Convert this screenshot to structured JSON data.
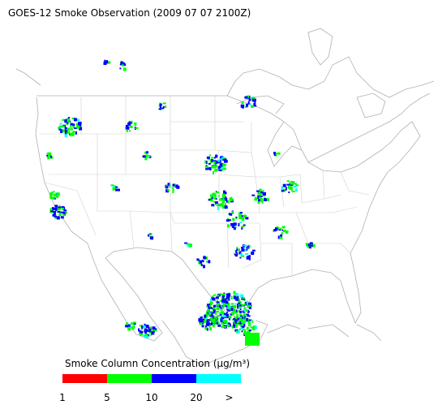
{
  "title": "GOES-12 Smoke Observation (2009 07 07  2100Z)",
  "legend": {
    "title": "Smoke Column Concentration (μg/m³)",
    "colors": [
      "#ff0000",
      "#00ff00",
      "#0000ff",
      "#00ffff"
    ],
    "labels": [
      "1",
      "5",
      "10",
      "20",
      ">"
    ]
  }
}
